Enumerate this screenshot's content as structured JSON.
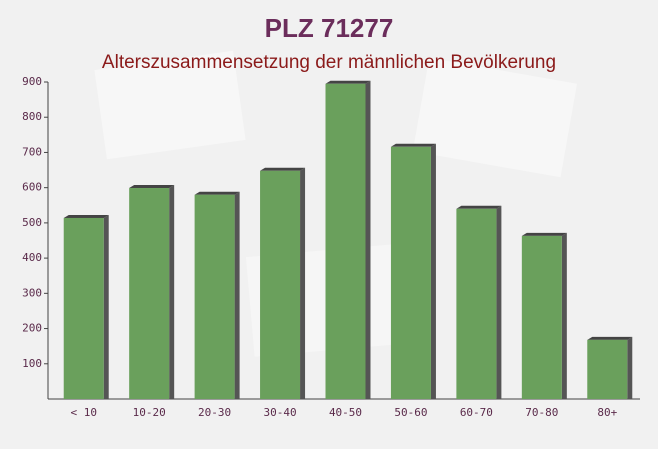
{
  "chart_data": {
    "type": "bar",
    "title": "PLZ 71277",
    "subtitle": "Alterszusammensetzung der männlichen Bevölkerung",
    "categories": [
      "< 10",
      "10-20",
      "20-30",
      "30-40",
      "40-50",
      "50-60",
      "60-70",
      "70-80",
      "80+"
    ],
    "values": [
      514,
      599,
      580,
      648,
      895,
      716,
      540,
      463,
      168
    ],
    "color": "#6aa05c",
    "ylim": [
      0,
      900
    ],
    "yticks": [
      100,
      200,
      300,
      400,
      500,
      600,
      700,
      800,
      900
    ],
    "grid": false
  }
}
